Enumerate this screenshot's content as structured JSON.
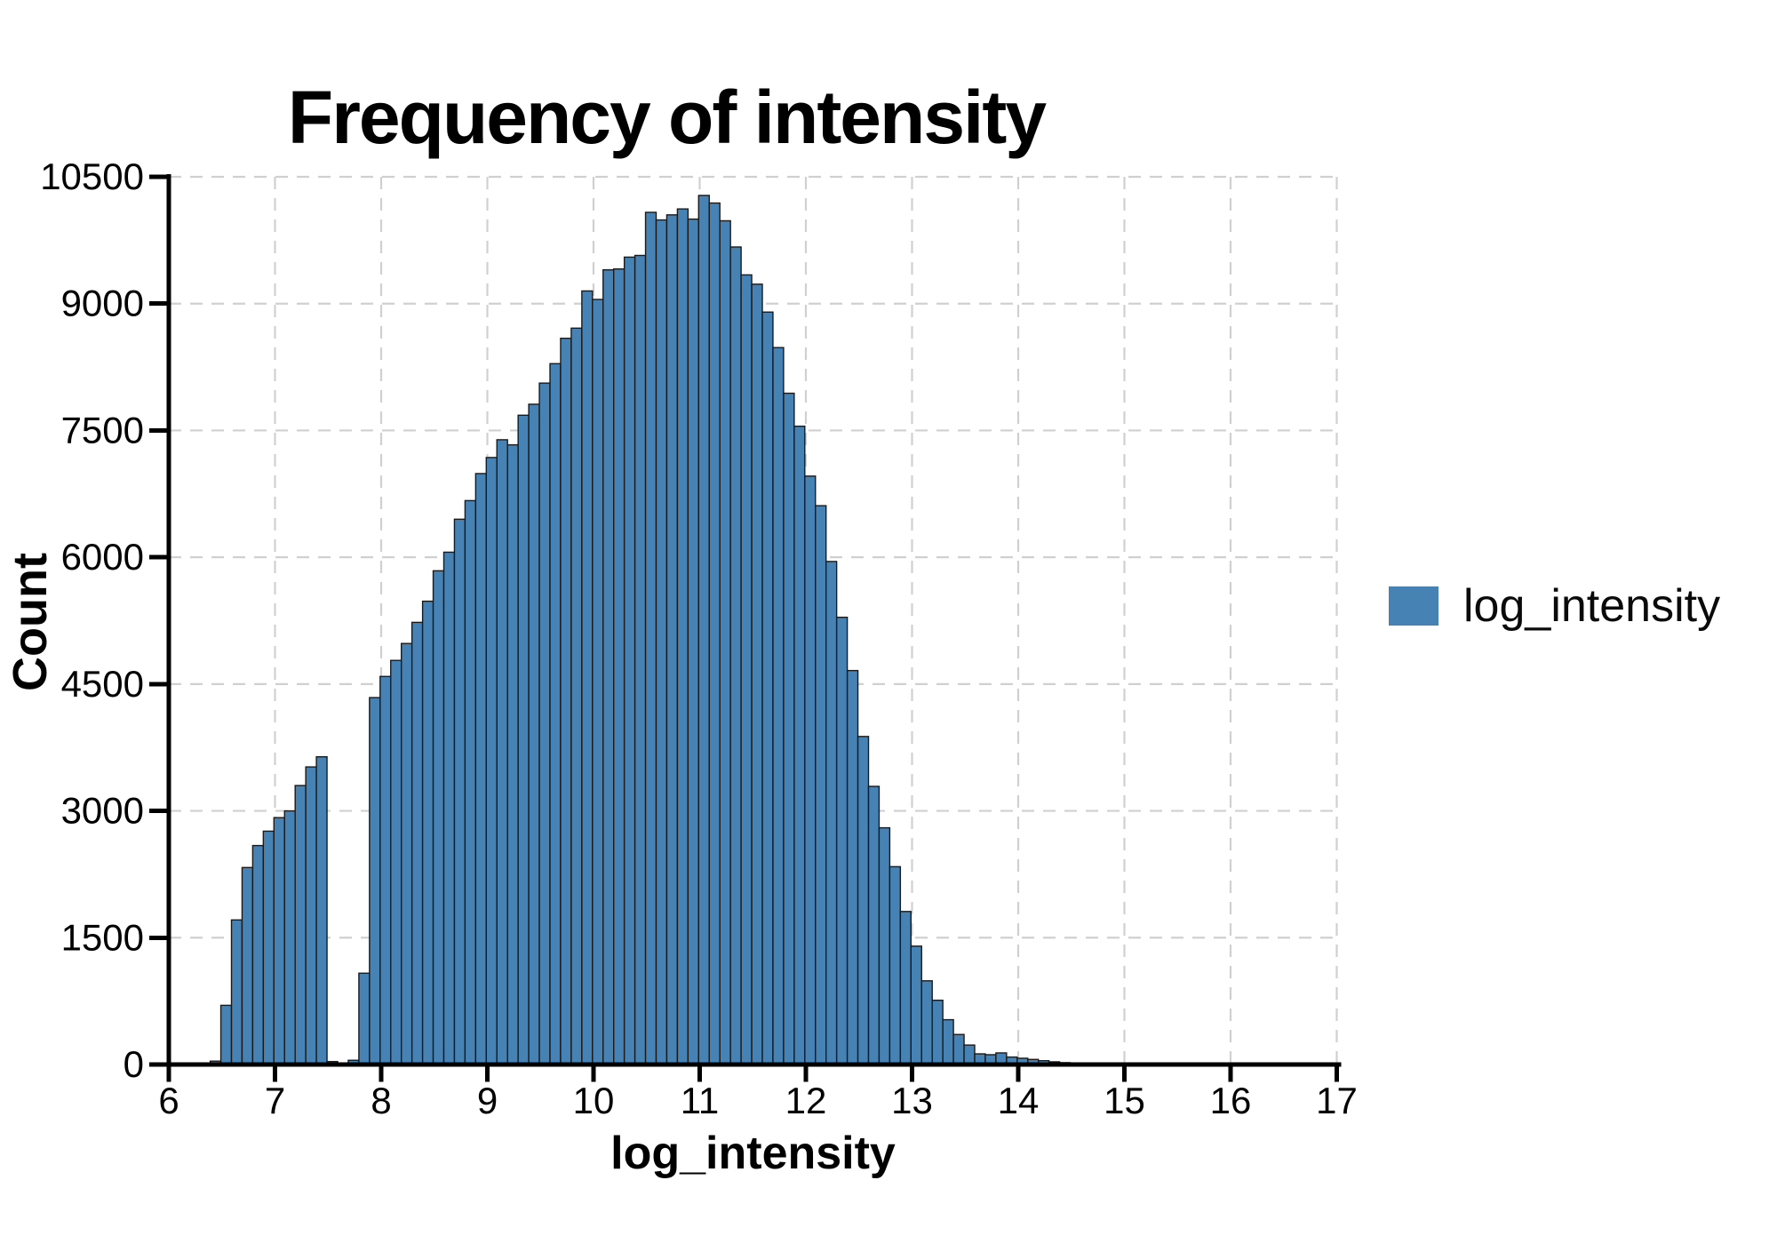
{
  "title": "Frequency of intensity",
  "axes": {
    "x_label": "log_intensity",
    "y_label": "Count"
  },
  "legend": {
    "label": "log_intensity",
    "swatch_color": "#4682b4",
    "position": "right"
  },
  "chart_data": {
    "type": "bar",
    "subtype": "histogram",
    "title": "Frequency of intensity",
    "xlabel": "log_intensity",
    "ylabel": "Count",
    "legend_entries": [
      "log_intensity"
    ],
    "legend_position": "right",
    "grid": true,
    "grid_style": "dashed",
    "xlim": [
      6,
      17
    ],
    "ylim": [
      0,
      10500
    ],
    "x_ticks": [
      6,
      7,
      8,
      9,
      10,
      11,
      12,
      13,
      14,
      15,
      16,
      17
    ],
    "y_ticks": [
      0,
      1500,
      3000,
      4500,
      6000,
      7500,
      9000,
      10500
    ],
    "bar_color": "#4682b4",
    "bar_edge_color": "#1a1a1a",
    "grid_color": "#d0d0d0",
    "axis_color": "#000000",
    "bin_start": 6.39,
    "bin_width": 0.1,
    "counts": [
      40,
      700,
      1710,
      2330,
      2590,
      2760,
      2920,
      3000,
      3300,
      3520,
      3640,
      35,
      10,
      50,
      1080,
      4340,
      4590,
      4780,
      4980,
      5230,
      5480,
      5840,
      6060,
      6450,
      6670,
      6990,
      7180,
      7390,
      7330,
      7680,
      7810,
      8060,
      8290,
      8590,
      8710,
      9150,
      9050,
      9400,
      9410,
      9550,
      9570,
      10080,
      9990,
      10050,
      10120,
      10000,
      10280,
      10190,
      9980,
      9670,
      9340,
      9230,
      8900,
      8480,
      7940,
      7550,
      6960,
      6610,
      5950,
      5290,
      4660,
      3880,
      3290,
      2800,
      2340,
      1810,
      1400,
      990,
      760,
      530,
      355,
      230,
      126,
      116,
      137,
      88,
      74,
      60,
      45,
      32,
      22,
      15,
      9,
      5,
      3
    ]
  }
}
